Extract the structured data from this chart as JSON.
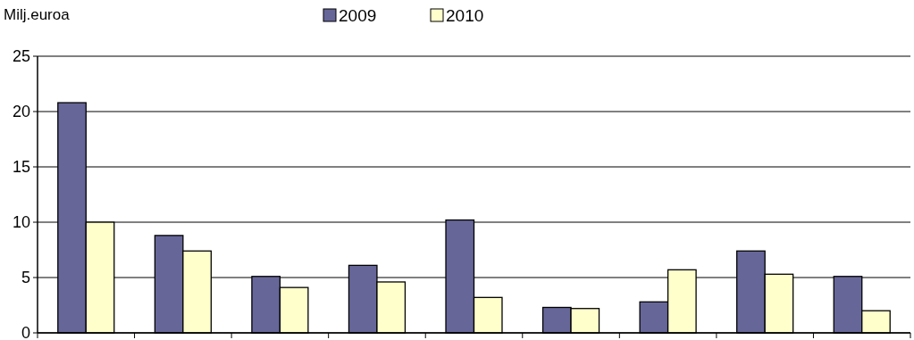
{
  "chart_data": {
    "type": "bar",
    "ylabel": "Milj.euroa",
    "categories": [
      null,
      null,
      null,
      null,
      null,
      null,
      null,
      null,
      null
    ],
    "series": [
      {
        "name": "2009",
        "color": "#666699",
        "values": [
          20.8,
          8.8,
          5.1,
          6.1,
          10.2,
          2.3,
          2.8,
          7.4,
          5.1
        ]
      },
      {
        "name": "2010",
        "color": "#ffffcc",
        "values": [
          10.0,
          7.4,
          4.1,
          4.6,
          3.2,
          2.2,
          5.7,
          5.3,
          2.0
        ]
      }
    ],
    "ylim": [
      0,
      25
    ],
    "yticks": [
      0,
      5,
      10,
      15,
      20,
      25
    ],
    "grid": "y",
    "legend": "top"
  }
}
